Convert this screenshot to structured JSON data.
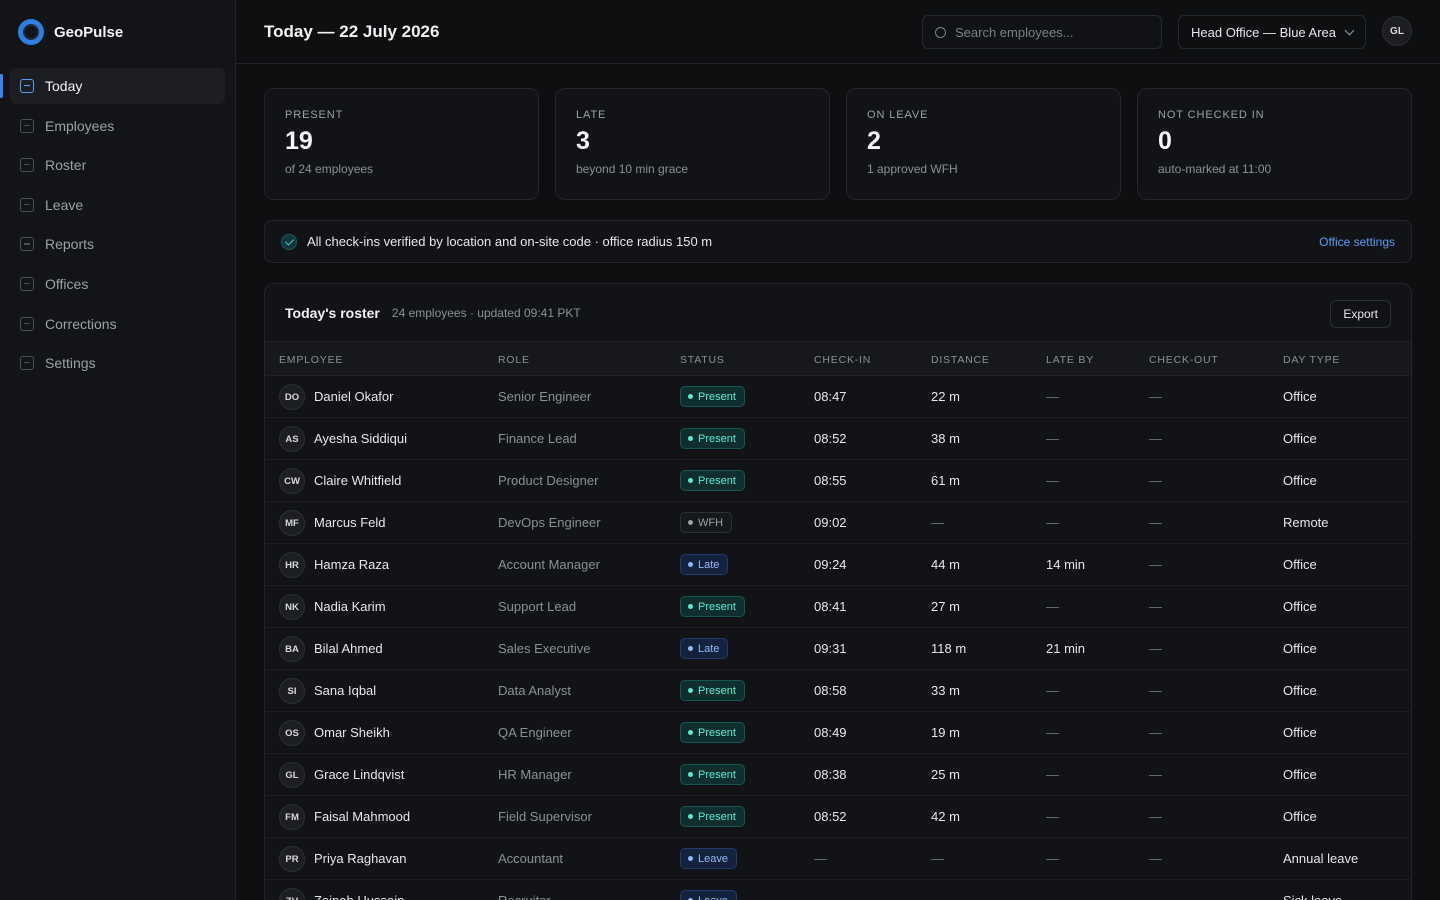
{
  "app": {
    "name": "GeoPulse"
  },
  "sidebar": {
    "items": [
      {
        "label": "Today",
        "active": true
      },
      {
        "label": "Employees"
      },
      {
        "label": "Roster"
      },
      {
        "label": "Leave"
      },
      {
        "label": "Reports"
      },
      {
        "label": "Offices"
      },
      {
        "label": "Corrections"
      },
      {
        "label": "Settings"
      }
    ]
  },
  "header": {
    "title": "Today — 22 July 2026",
    "search_placeholder": "Search employees...",
    "office": "Head Office — Blue Area",
    "user_initials": "GL"
  },
  "stats": [
    {
      "label": "PRESENT",
      "value": "19",
      "sub": "of 24 employees"
    },
    {
      "label": "LATE",
      "value": "3",
      "sub": "beyond 10 min grace"
    },
    {
      "label": "ON LEAVE",
      "value": "2",
      "sub": "1 approved WFH"
    },
    {
      "label": "NOT CHECKED IN",
      "value": "0",
      "sub": "auto-marked at 11:00"
    }
  ],
  "banner": {
    "text": "All check-ins verified by location and on-site code · office radius 150 m",
    "link": "Office settings"
  },
  "roster": {
    "title": "Today's roster",
    "meta": "24 employees · updated 09:41 PKT",
    "export_label": "Export",
    "columns": [
      "EMPLOYEE",
      "ROLE",
      "STATUS",
      "CHECK-IN",
      "DISTANCE",
      "LATE BY",
      "CHECK-OUT",
      "DAY TYPE"
    ],
    "rows": [
      {
        "initials": "DO",
        "name": "Daniel Okafor",
        "role": "Senior Engineer",
        "status": "Present",
        "checkin": "08:47",
        "distance": "22 m",
        "late": "—",
        "checkout": "—",
        "daytype": "Office"
      },
      {
        "initials": "AS",
        "name": "Ayesha Siddiqui",
        "role": "Finance Lead",
        "status": "Present",
        "checkin": "08:52",
        "distance": "38 m",
        "late": "—",
        "checkout": "—",
        "daytype": "Office"
      },
      {
        "initials": "CW",
        "name": "Claire Whitfield",
        "role": "Product Designer",
        "status": "Present",
        "checkin": "08:55",
        "distance": "61 m",
        "late": "—",
        "checkout": "—",
        "daytype": "Office"
      },
      {
        "initials": "MF",
        "name": "Marcus Feld",
        "role": "DevOps Engineer",
        "status": "WFH",
        "checkin": "09:02",
        "distance": "—",
        "late": "—",
        "checkout": "—",
        "daytype": "Remote"
      },
      {
        "initials": "HR",
        "name": "Hamza Raza",
        "role": "Account Manager",
        "status": "Late",
        "checkin": "09:24",
        "distance": "44 m",
        "late": "14 min",
        "checkout": "—",
        "daytype": "Office"
      },
      {
        "initials": "NK",
        "name": "Nadia Karim",
        "role": "Support Lead",
        "status": "Present",
        "checkin": "08:41",
        "distance": "27 m",
        "late": "—",
        "checkout": "—",
        "daytype": "Office"
      },
      {
        "initials": "BA",
        "name": "Bilal Ahmed",
        "role": "Sales Executive",
        "status": "Late",
        "checkin": "09:31",
        "distance": "118 m",
        "late": "21 min",
        "checkout": "—",
        "daytype": "Office"
      },
      {
        "initials": "SI",
        "name": "Sana Iqbal",
        "role": "Data Analyst",
        "status": "Present",
        "checkin": "08:58",
        "distance": "33 m",
        "late": "—",
        "checkout": "—",
        "daytype": "Office"
      },
      {
        "initials": "OS",
        "name": "Omar Sheikh",
        "role": "QA Engineer",
        "status": "Present",
        "checkin": "08:49",
        "distance": "19 m",
        "late": "—",
        "checkout": "—",
        "daytype": "Office"
      },
      {
        "initials": "GL",
        "name": "Grace Lindqvist",
        "role": "HR Manager",
        "status": "Present",
        "checkin": "08:38",
        "distance": "25 m",
        "late": "—",
        "checkout": "—",
        "daytype": "Office"
      },
      {
        "initials": "FM",
        "name": "Faisal Mahmood",
        "role": "Field Supervisor",
        "status": "Present",
        "checkin": "08:52",
        "distance": "42 m",
        "late": "—",
        "checkout": "—",
        "daytype": "Office"
      },
      {
        "initials": "PR",
        "name": "Priya Raghavan",
        "role": "Accountant",
        "status": "Leave",
        "checkin": "—",
        "distance": "—",
        "late": "—",
        "checkout": "—",
        "daytype": "Annual leave"
      },
      {
        "initials": "ZH",
        "name": "Zainab Hussain",
        "role": "Recruiter",
        "status": "Leave",
        "checkin": "—",
        "distance": "—",
        "late": "—",
        "checkout": "—",
        "daytype": "Sick leave"
      }
    ]
  }
}
